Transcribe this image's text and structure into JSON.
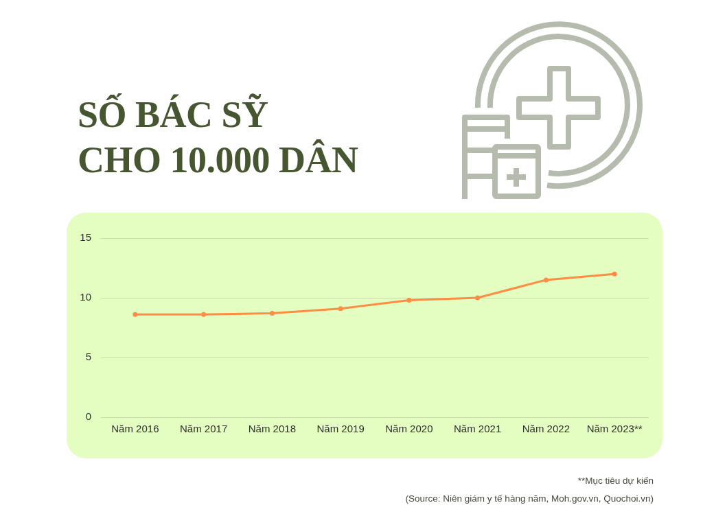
{
  "chart_data": {
    "type": "line",
    "title": "SỐ BÁC SỸ\nCHO 10.000 DÂN",
    "categories": [
      "Năm 2016",
      "Năm 2017",
      "Năm 2018",
      "Năm 2019",
      "Năm 2020",
      "Năm 2021",
      "Năm 2022",
      "Năm 2023**"
    ],
    "series": [
      {
        "color": "#ff8c42",
        "values": [
          8.6,
          8.6,
          8.7,
          9.1,
          9.8,
          10.0,
          11.5,
          12.0
        ]
      }
    ],
    "ylim": [
      0,
      15
    ],
    "yticks": [
      0,
      5,
      10,
      15
    ],
    "grid": "y",
    "marker": "circle",
    "line_style": "solid",
    "annotations": [
      "**Mục tiêu dự kiến",
      "(Source: Niên giám y tế hàng năm, Moh.gov.vn, Quochoi.vn)"
    ]
  }
}
